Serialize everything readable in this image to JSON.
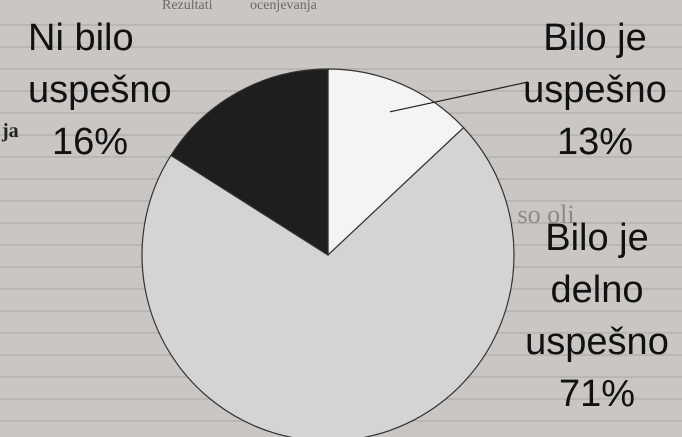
{
  "chart_data": {
    "type": "pie",
    "slices": [
      {
        "label": "Bilo je uspešno",
        "lines": [
          "Bilo je",
          "uspešno"
        ],
        "value": 13,
        "pct_text": "13%",
        "color": "#f4f4f4"
      },
      {
        "label": "Bilo je delno uspešno",
        "lines": [
          "Bilo je",
          "delno",
          "uspešno"
        ],
        "value": 71,
        "pct_text": "71%",
        "color": "#d4d4d4"
      },
      {
        "label": "Ni bilo uspešno",
        "lines": [
          "Ni bilo",
          "uspešno"
        ],
        "value": 16,
        "pct_text": "16%",
        "color": "#1e1e1e"
      }
    ],
    "start_angle_deg": 0,
    "direction": "clockwise",
    "legend": "none"
  },
  "background_fragments": {
    "left_edge": "ja",
    "top_left": "Rezultati",
    "top_mid": "ocenjevanja",
    "right_mid": "1 so oli"
  }
}
